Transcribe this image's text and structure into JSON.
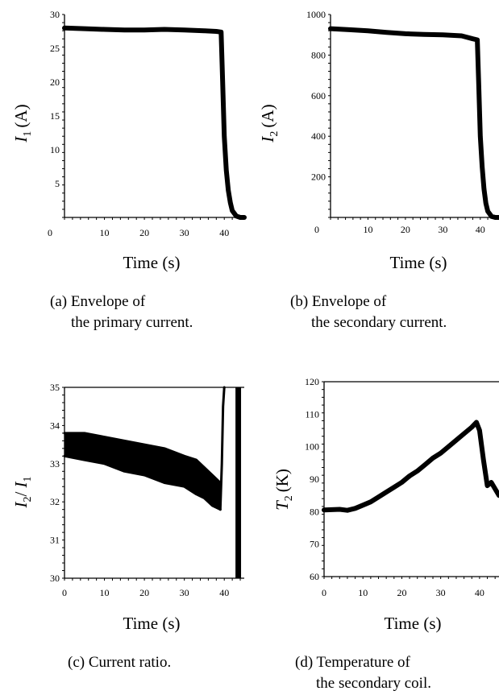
{
  "charts": [
    {
      "type": "line",
      "ylabel": "I1 (A)",
      "ylabel_var": "I",
      "ylabel_sub": "1",
      "ylabel_unit": "(A)",
      "xlabel": "Time (s)",
      "xlim": [
        0,
        45
      ],
      "ylim": [
        0,
        30
      ],
      "x_ticks": [
        "0",
        "10",
        "20",
        "30",
        "40"
      ],
      "y_ticks": [
        "5",
        "10",
        "15",
        "20",
        "25",
        "30"
      ],
      "caption_line1": "(a) Envelope of",
      "caption_line2": "the primary current."
    },
    {
      "type": "line",
      "ylabel": "I2 (A)",
      "ylabel_var": "I",
      "ylabel_sub": "2",
      "ylabel_unit": "(A)",
      "xlabel": "Time (s)",
      "xlim": [
        0,
        45
      ],
      "ylim": [
        0,
        1000
      ],
      "x_ticks": [
        "0",
        "10",
        "20",
        "30",
        "40"
      ],
      "y_ticks": [
        "200",
        "400",
        "600",
        "800",
        "1000"
      ],
      "caption_line1": "(b) Envelope of",
      "caption_line2": "the secondary current."
    },
    {
      "type": "line",
      "ylabel": "I2/ I1",
      "xlabel": "Time (s)",
      "xlim": [
        0,
        45
      ],
      "ylim": [
        30,
        35
      ],
      "x_ticks": [
        "0",
        "10",
        "20",
        "30",
        "40"
      ],
      "y_ticks": [
        "30",
        "31",
        "32",
        "33",
        "34",
        "35"
      ],
      "caption_line1": "(c) Current ratio."
    },
    {
      "type": "line",
      "ylabel": "T2 (K)",
      "ylabel_var": "T",
      "ylabel_sub": "2",
      "ylabel_unit": "(K)",
      "xlabel": "Time (s)",
      "xlim": [
        0,
        45
      ],
      "ylim": [
        60,
        120
      ],
      "x_ticks": [
        "0",
        "10",
        "20",
        "30",
        "40"
      ],
      "y_ticks": [
        "60",
        "70",
        "80",
        "90",
        "100",
        "110",
        "120"
      ],
      "caption_line1": "(d) Temperature of",
      "caption_line2": "the secondary coil."
    }
  ],
  "chart_data": [
    {
      "type": "line",
      "xlabel": "Time (s)",
      "ylabel": "I1 (A)",
      "xlim": [
        0,
        45
      ],
      "ylim": [
        0,
        30
      ],
      "grid": false,
      "series": [
        {
          "x": [
            0,
            5,
            10,
            15,
            20,
            25,
            30,
            35,
            38,
            39.2,
            39.6,
            40.0,
            40.5,
            41,
            41.5,
            42,
            43,
            44,
            45
          ],
          "y": [
            28.0,
            27.9,
            27.8,
            27.7,
            27.7,
            27.8,
            27.7,
            27.6,
            27.5,
            27.4,
            20,
            12,
            7,
            4,
            2.2,
            1.0,
            0.2,
            0.0,
            0.0
          ]
        }
      ]
    },
    {
      "type": "line",
      "xlabel": "Time (s)",
      "ylabel": "I2 (A)",
      "xlim": [
        0,
        45
      ],
      "ylim": [
        0,
        1000
      ],
      "grid": false,
      "series": [
        {
          "x": [
            0,
            5,
            10,
            15,
            20,
            25,
            30,
            35,
            38,
            39.2,
            39.6,
            40.0,
            40.5,
            41,
            41.5,
            42,
            43,
            44,
            45
          ],
          "y": [
            930,
            925,
            920,
            912,
            905,
            902,
            900,
            895,
            880,
            875,
            650,
            400,
            250,
            140,
            70,
            30,
            5,
            0,
            0
          ]
        }
      ]
    },
    {
      "type": "line",
      "xlabel": "Time (s)",
      "ylabel": "I2/ I1",
      "xlim": [
        0,
        45
      ],
      "ylim": [
        30,
        35
      ],
      "grid": false,
      "series": [
        {
          "name": "upper",
          "x": [
            0,
            5,
            10,
            15,
            20,
            25,
            30,
            33,
            35,
            37,
            39
          ],
          "y": [
            33.8,
            33.8,
            33.7,
            33.6,
            33.5,
            33.4,
            33.2,
            33.1,
            32.9,
            32.7,
            32.5
          ]
        },
        {
          "name": "lower",
          "x": [
            0,
            5,
            10,
            15,
            20,
            25,
            30,
            33,
            35,
            37,
            39
          ],
          "y": [
            33.2,
            33.1,
            33.0,
            32.8,
            32.7,
            32.5,
            32.4,
            32.2,
            32.1,
            31.9,
            31.8
          ]
        },
        {
          "name": "spike",
          "x": [
            39,
            39.4,
            39.7,
            40.0
          ],
          "y": [
            31.8,
            33.0,
            34.5,
            35.0
          ]
        },
        {
          "name": "band",
          "x": [
            42.8,
            43.5,
            44.2
          ],
          "y": [
            30,
            35,
            30
          ]
        }
      ]
    },
    {
      "type": "line",
      "xlabel": "Time (s)",
      "ylabel": "T2 (K)",
      "xlim": [
        0,
        45
      ],
      "ylim": [
        60,
        120
      ],
      "grid": false,
      "series": [
        {
          "x": [
            0,
            2,
            4,
            6,
            8,
            10,
            12,
            14,
            16,
            18,
            20,
            22,
            24,
            26,
            28,
            30,
            32,
            34,
            36,
            38,
            39.2,
            40,
            41,
            42,
            43,
            44,
            45
          ],
          "y": [
            80.5,
            80.6,
            80.7,
            80.4,
            81,
            82,
            83,
            84.5,
            86,
            87.5,
            89,
            91,
            92.5,
            94.5,
            96.5,
            98,
            100,
            102,
            104,
            106,
            107.5,
            105,
            96,
            88,
            89,
            87,
            85
          ]
        }
      ]
    }
  ]
}
